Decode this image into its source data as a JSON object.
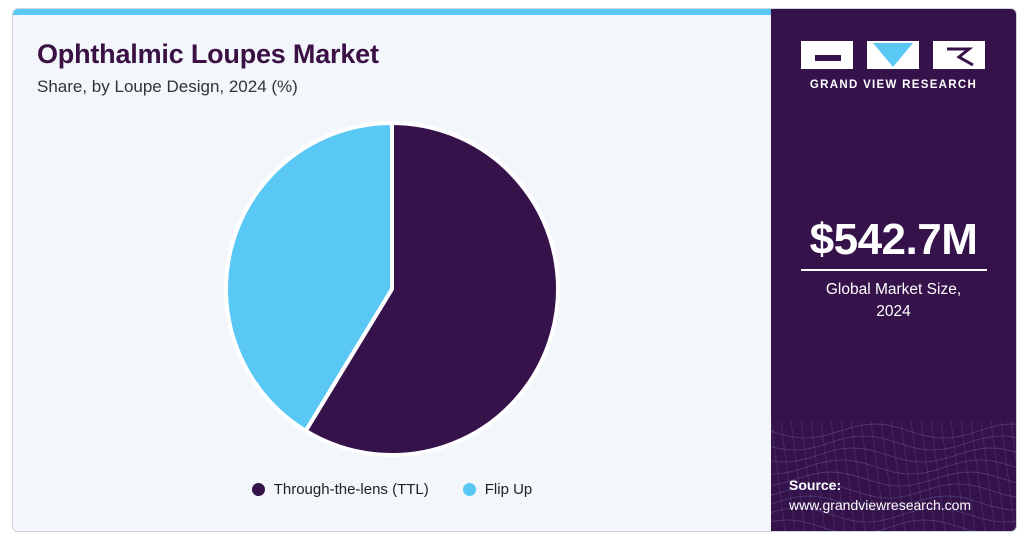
{
  "header": {
    "title": "Ophthalmic Loupes Market",
    "subtitle": "Share, by Loupe Design, 2024 (%)"
  },
  "chart_data": {
    "type": "pie",
    "title": "Ophthalmic Loupes Market",
    "subtitle": "Share, by Loupe Design, 2024 (%)",
    "categories": [
      "Through-the-lens (TTL)",
      "Flip Up"
    ],
    "values": [
      58.7,
      41.3
    ],
    "colors": [
      "#36124a",
      "#5ac8f5"
    ],
    "legend_position": "bottom"
  },
  "legend": {
    "items": [
      {
        "label": "Through-the-lens (TTL)",
        "color": "#36124a"
      },
      {
        "label": "Flip Up",
        "color": "#5ac8f5"
      }
    ]
  },
  "sidebar": {
    "brand": "GRAND VIEW RESEARCH",
    "market_value": "$542.7M",
    "market_label_line1": "Global Market Size,",
    "market_label_line2": "2024",
    "source_label": "Source:",
    "source_url": "www.grandviewresearch.com",
    "bg_color": "#36124a",
    "accent_color": "#5ac8f5"
  }
}
